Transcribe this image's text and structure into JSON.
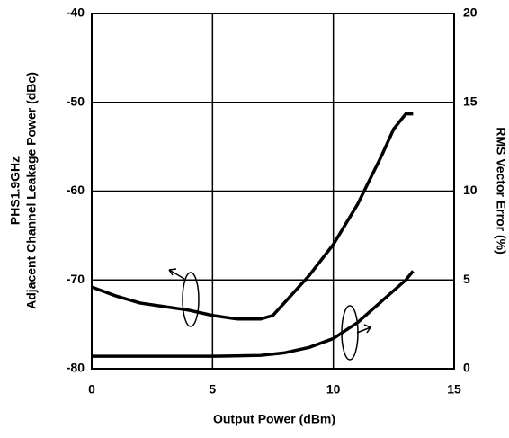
{
  "chart_data": {
    "type": "line",
    "xlabel": "Output Power (dBm)",
    "ylabel": [
      "PHS1.9GHz",
      "Adjacent Channel Leakage Power (dBc)"
    ],
    "y2label": "RMS Vector Error (%)",
    "xlim": [
      0,
      15
    ],
    "xticks": [
      0,
      5,
      10,
      15
    ],
    "ylim": [
      -80,
      -40
    ],
    "yticks": [
      -80,
      -70,
      -60,
      -50,
      -40
    ],
    "y2lim": [
      0,
      20
    ],
    "y2ticks": [
      0,
      5,
      10,
      15,
      20
    ],
    "grid": true,
    "series": [
      {
        "color": "#000000",
        "axis": "y",
        "x": [
          0,
          1,
          2,
          3,
          4,
          5,
          6,
          7,
          7.5,
          8,
          9,
          10,
          11,
          12,
          12.5,
          13,
          13.3
        ],
        "values": [
          -70.8,
          -71.8,
          -72.6,
          -73,
          -73.4,
          -74,
          -74.4,
          -74.4,
          -74,
          -72.5,
          -69.5,
          -66,
          -61.5,
          -56,
          -53,
          -51.3,
          -51.3
        ]
      },
      {
        "color": "#000000",
        "axis": "y2",
        "x": [
          0,
          2,
          5,
          7,
          8,
          9,
          10,
          11,
          12,
          13,
          13.3
        ],
        "values": [
          0.7,
          0.7,
          0.7,
          0.75,
          0.9,
          1.2,
          1.7,
          2.6,
          3.8,
          5.0,
          5.5
        ]
      }
    ]
  }
}
